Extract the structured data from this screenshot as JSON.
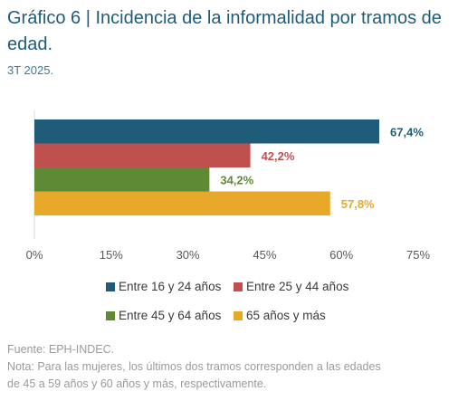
{
  "title": "Gráfico 6 | Incidencia de la informalidad por tramos de edad.",
  "subtitle": "3T 2025.",
  "chart_data": {
    "type": "bar",
    "orientation": "horizontal",
    "xlim": [
      0,
      75
    ],
    "x_ticks": [
      0,
      15,
      30,
      45,
      60,
      75
    ],
    "x_tick_labels": [
      "0%",
      "15%",
      "30%",
      "45%",
      "60%",
      "75%"
    ],
    "grid": false,
    "legend_position": "bottom",
    "series": [
      {
        "name": "Entre 16 y 24 años",
        "value": 67.4,
        "label": "67,4%",
        "color": "#1f5c7a"
      },
      {
        "name": "Entre 25 y 44 años",
        "value": 42.2,
        "label": "42,2%",
        "color": "#c0504d"
      },
      {
        "name": "Entre 45 y 64 años",
        "value": 34.2,
        "label": "34,2%",
        "color": "#5e8a35"
      },
      {
        "name": "65 años y más",
        "value": 57.8,
        "label": "57,8%",
        "color": "#e8a82a"
      }
    ]
  },
  "footer": {
    "source": "Fuente: EPH-INDEC.",
    "note_line1": "Nota: Para las mujeres, los últimos dos tramos corresponden a las edades",
    "note_line2": "de 45 a 59 años y 60 años y más, respectivamente."
  }
}
